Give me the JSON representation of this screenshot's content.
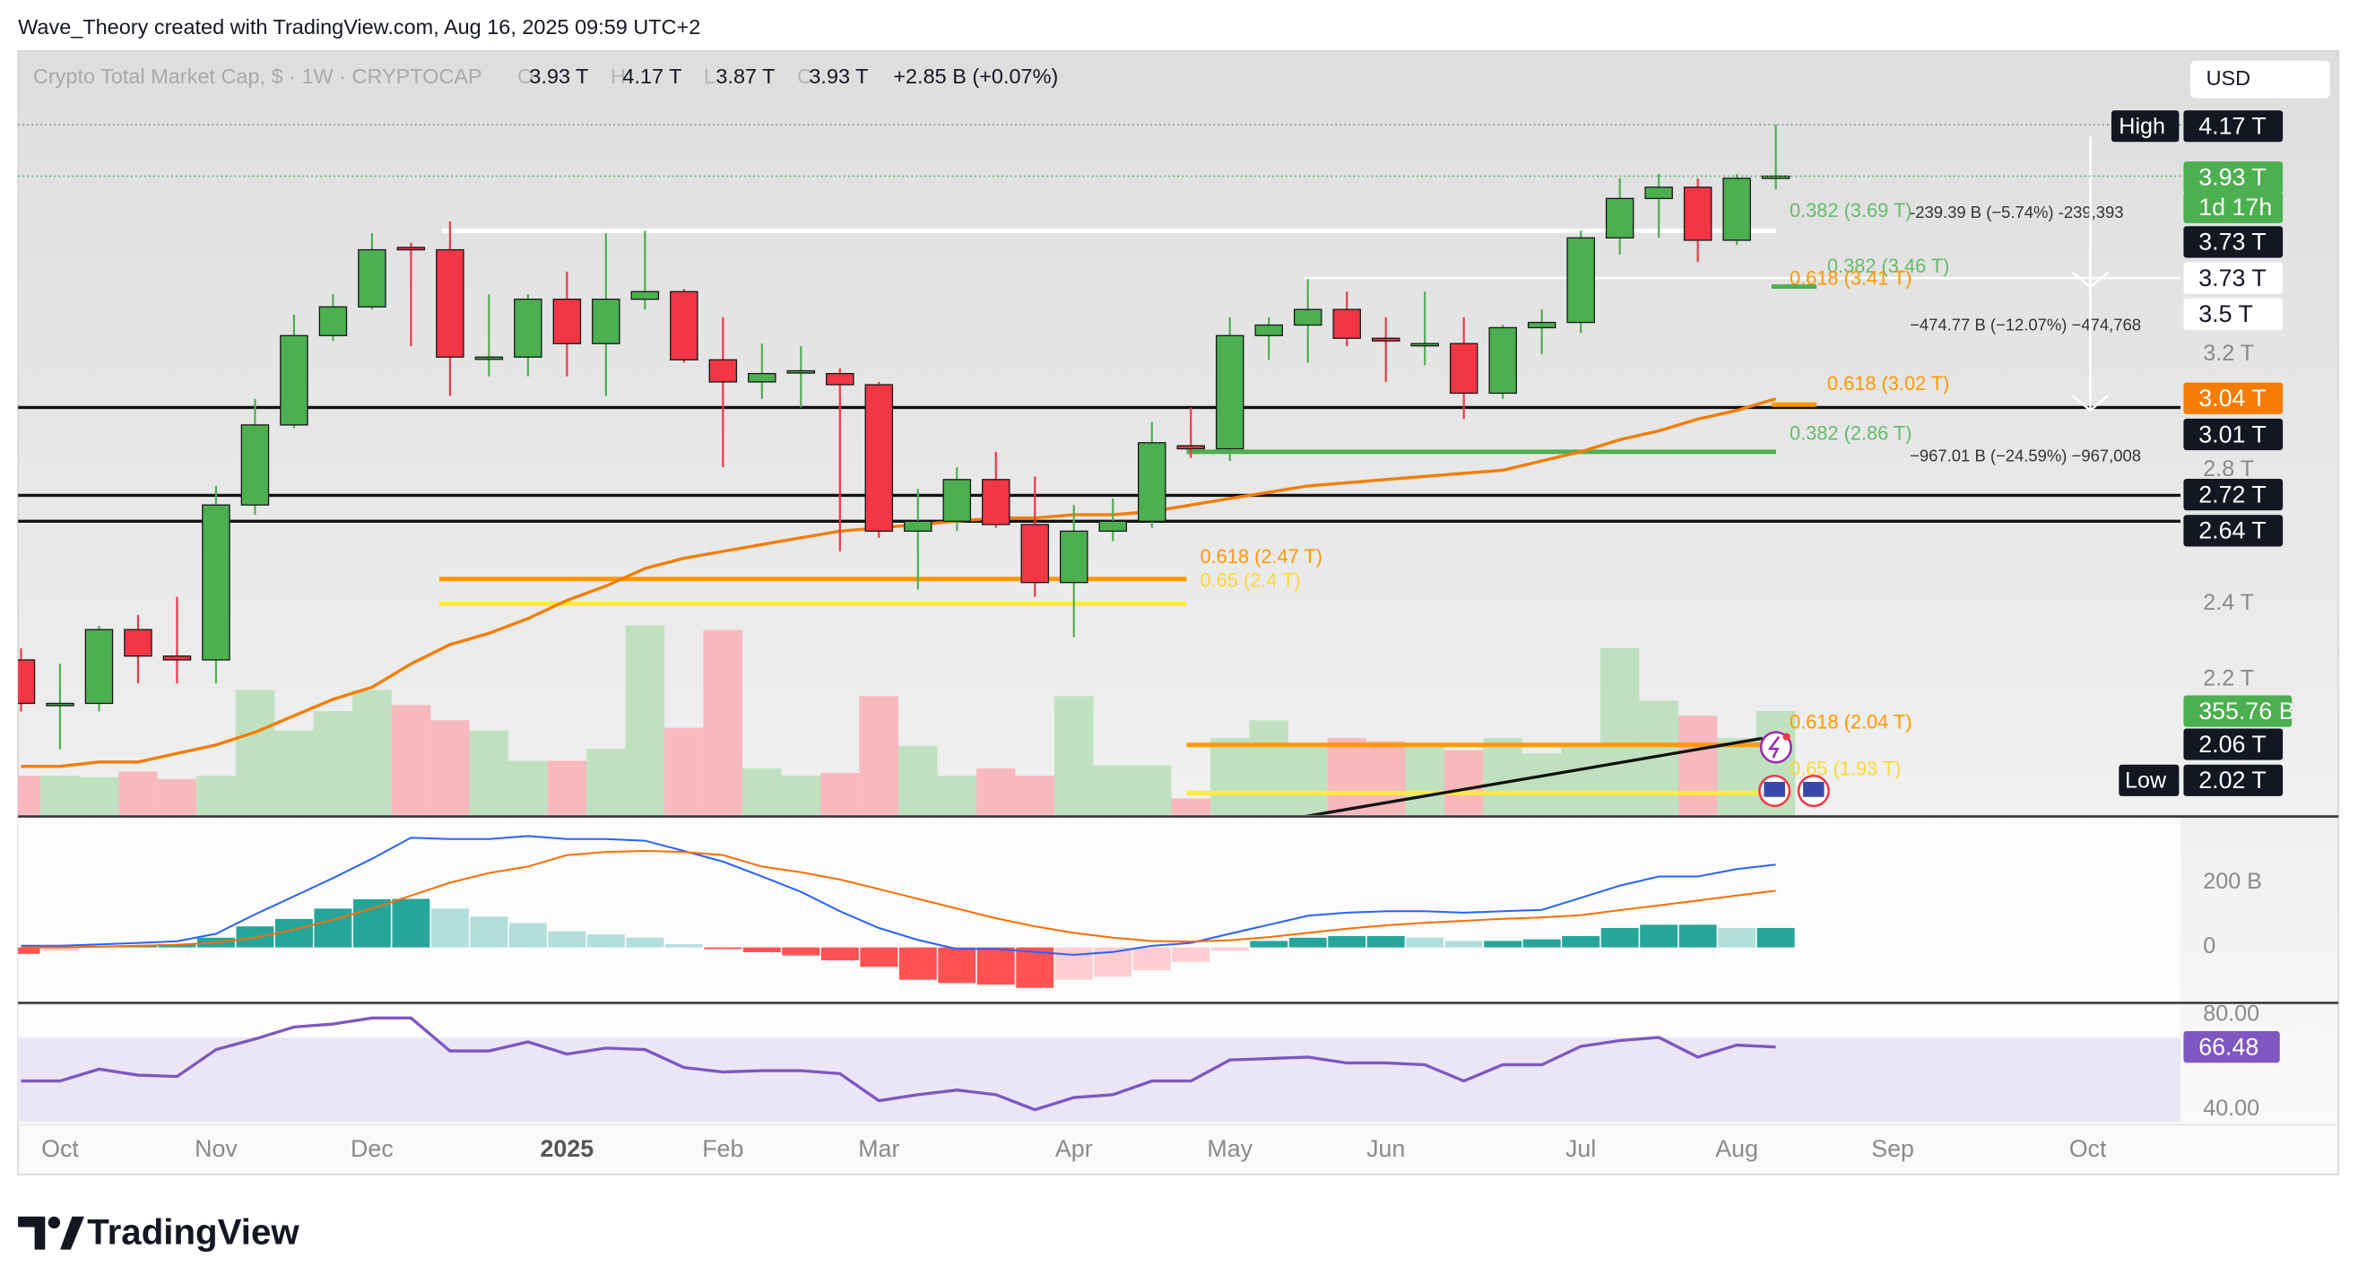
{
  "chart_data": {
    "type": "candlestick",
    "header": "Wave_Theory created with TradingView.com, Aug 16, 2025 09:59 UTC+2",
    "title": "Crypto Total Market Cap, $ · 1W · CRYPTOCAP",
    "ohlc_legend": [
      {
        "key": "O",
        "value": "3.93 T"
      },
      {
        "key": "H",
        "value": "4.17 T"
      },
      {
        "key": "L",
        "value": "3.87 T"
      },
      {
        "key": "C",
        "value": "3.93 T"
      }
    ],
    "change": "+2.85 B (+0.07%)",
    "currency": "USD",
    "brand": "TradingView",
    "log_scale": true,
    "grid": false,
    "colors": {
      "up": "#4caf50",
      "down": "#f23645"
    },
    "categories": [
      null,
      "Oct",
      null,
      null,
      null,
      "Nov",
      null,
      null,
      null,
      "Dec",
      null,
      null,
      null,
      null,
      "2025",
      null,
      null,
      null,
      "Feb",
      null,
      null,
      null,
      "Mar",
      null,
      null,
      null,
      null,
      "Apr",
      null,
      null,
      null,
      "May",
      null,
      null,
      null,
      "Jun",
      null,
      null,
      null,
      null,
      "Jul",
      null,
      null,
      null,
      "Aug",
      null,
      null,
      null,
      "Sep",
      null,
      null,
      null,
      null,
      "Oct"
    ],
    "open": [
      2.25,
      2.14,
      2.14,
      2.33,
      2.26,
      2.25,
      2.69,
      2.95,
      3.27,
      3.38,
      3.62,
      3.61,
      3.19,
      3.19,
      3.41,
      3.24,
      3.41,
      3.44,
      3.18,
      3.1,
      3.14,
      3.13,
      3.09,
      2.61,
      2.64,
      2.77,
      2.63,
      2.46,
      2.61,
      2.64,
      2.88,
      2.87,
      3.27,
      3.31,
      3.37,
      3.26,
      3.24,
      3.24,
      3.06,
      3.3,
      3.32,
      3.66,
      3.83,
      3.88,
      3.65,
      3.93,
      null,
      null,
      null,
      null,
      null,
      null,
      null,
      null
    ],
    "high": [
      2.28,
      2.24,
      2.34,
      2.37,
      2.42,
      2.75,
      3.04,
      3.35,
      3.43,
      3.68,
      3.64,
      3.73,
      3.43,
      3.43,
      3.52,
      3.68,
      3.69,
      3.45,
      3.34,
      3.24,
      3.23,
      3.15,
      3.1,
      2.74,
      2.81,
      2.86,
      2.78,
      2.69,
      2.71,
      2.96,
      3.01,
      3.34,
      3.34,
      3.49,
      3.44,
      3.34,
      3.44,
      3.34,
      3.31,
      3.37,
      3.69,
      3.92,
      3.94,
      3.92,
      3.94,
      4.17,
      null,
      null,
      null,
      null,
      null,
      null,
      null,
      null
    ],
    "low": [
      2.12,
      2.03,
      2.12,
      2.19,
      2.19,
      2.19,
      2.66,
      2.94,
      3.25,
      3.37,
      3.23,
      3.05,
      3.12,
      3.12,
      3.12,
      3.05,
      3.37,
      3.17,
      2.81,
      3.04,
      3.01,
      2.55,
      2.59,
      2.44,
      2.61,
      2.62,
      2.42,
      2.31,
      2.58,
      2.62,
      2.84,
      2.83,
      3.18,
      3.17,
      3.23,
      3.1,
      3.16,
      2.97,
      3.04,
      3.2,
      3.28,
      3.59,
      3.66,
      3.56,
      3.63,
      3.87,
      null,
      null,
      null,
      null,
      null,
      null,
      null,
      null
    ],
    "close": [
      2.14,
      2.14,
      2.33,
      2.26,
      2.25,
      2.69,
      2.95,
      3.27,
      3.38,
      3.61,
      3.61,
      3.19,
      3.19,
      3.41,
      3.24,
      3.41,
      3.44,
      3.18,
      3.1,
      3.13,
      3.14,
      3.09,
      2.61,
      2.64,
      2.77,
      2.63,
      2.46,
      2.61,
      2.64,
      2.89,
      2.87,
      3.27,
      3.31,
      3.37,
      3.26,
      3.25,
      3.24,
      3.06,
      3.3,
      3.32,
      3.66,
      3.83,
      3.88,
      3.65,
      3.92,
      3.93,
      null,
      null,
      null,
      null,
      null,
      null,
      null,
      null
    ],
    "ylim": [
      1.885,
      4.54
    ],
    "yticks": [
      {
        "value": 2.2,
        "label": "2.2 T"
      },
      {
        "value": 2.4,
        "label": "2.4 T"
      },
      {
        "value": 2.8,
        "label": "2.8 T"
      },
      {
        "value": 3.2,
        "label": "3.2 T"
      }
    ],
    "ma": {
      "color": "#f57c00",
      "values": [
        1.99,
        1.99,
        2.0,
        2.0,
        2.02,
        2.04,
        2.07,
        2.11,
        2.15,
        2.18,
        2.24,
        2.29,
        2.32,
        2.36,
        2.41,
        2.45,
        2.5,
        2.53,
        2.55,
        2.57,
        2.59,
        2.61,
        2.62,
        2.63,
        2.64,
        2.65,
        2.65,
        2.66,
        2.66,
        2.67,
        2.69,
        2.71,
        2.73,
        2.75,
        2.76,
        2.77,
        2.78,
        2.79,
        2.8,
        2.83,
        2.86,
        2.9,
        2.93,
        2.97,
        3.0,
        3.04,
        null,
        null,
        null,
        null,
        null,
        null,
        null,
        null
      ]
    },
    "volume": {
      "ylim": [
        0,
        2652
      ],
      "values": [
        131,
        131,
        126,
        146,
        120,
        131,
        429,
        288,
        356,
        429,
        377,
        324,
        288,
        183,
        183,
        225,
        654,
        298,
        638,
        157,
        131,
        141,
        408,
        235,
        131,
        157,
        131,
        408,
        167,
        167,
        52,
        262,
        324,
        246,
        262,
        251,
        235,
        220,
        262,
        209,
        235,
        575,
        392,
        340,
        262,
        355.76,
        null,
        null,
        null,
        null,
        null,
        null,
        null,
        null
      ]
    },
    "hlines": [
      3.01,
      2.72,
      2.64
    ],
    "fib_levels": [
      {
        "label": "0.382 (3.69 T)",
        "value": 3.69
      },
      {
        "label": "0.382 (3.46 T)",
        "value": 3.46
      },
      {
        "label": "0.618 (3.41 T)",
        "value": 3.41
      },
      {
        "label": "0.618 (3.02 T)",
        "value": 3.02
      },
      {
        "label": "0.382 (2.86 T)",
        "value": 2.86
      },
      {
        "label": "0.618 (2.47 T)",
        "value": 2.47
      },
      {
        "label": "0.65 (2.4 T)",
        "value": 2.4
      },
      {
        "label": "0.618 (2.04 T)",
        "value": 2.04
      },
      {
        "label": "0.65 (1.93 T)",
        "value": 1.93
      }
    ],
    "measurements": [
      "-239.39 B (−5.74%) -239,393",
      "−474.77 B (−12.07%) −474,768",
      "−967.01 B (−24.59%) −967,008"
    ],
    "high_tag": "High",
    "low_tag": "Low",
    "price_labels": [
      {
        "text": "4.17 T",
        "style": "black"
      },
      {
        "text": "3.93 T",
        "style": "green"
      },
      {
        "text": "1d 17h",
        "style": "green"
      },
      {
        "text": "3.73 T",
        "style": "black"
      },
      {
        "text": "3.73 T",
        "style": "white"
      },
      {
        "text": "3.5 T",
        "style": "white"
      },
      {
        "text": "3.04 T",
        "style": "orange"
      },
      {
        "text": "3.01 T",
        "style": "black"
      },
      {
        "text": "2.72 T",
        "style": "black"
      },
      {
        "text": "2.64 T",
        "style": "black"
      },
      {
        "text": "355.76 B",
        "style": "green"
      },
      {
        "text": "2.06 T",
        "style": "black"
      },
      {
        "text": "2.02 T",
        "style": "black"
      }
    ],
    "macd": {
      "ylim": [
        -167,
        400
      ],
      "yticks": [
        0,
        {
          "value": 200,
          "label": "200 B"
        }
      ],
      "histogram": [
        -20,
        -10,
        5,
        5,
        10,
        30,
        65,
        88,
        120,
        149,
        150,
        120,
        95,
        75,
        50,
        40,
        30,
        10,
        -5,
        -15,
        -25,
        -40,
        -60,
        -100,
        -110,
        -115,
        -125,
        -100,
        -90,
        -70,
        -45,
        -10,
        20,
        30,
        35,
        35,
        30,
        20,
        20,
        25,
        35,
        60,
        70,
        70,
        60,
        60,
        null,
        null,
        null,
        null,
        null,
        null,
        null,
        null
      ],
      "macd": [
        5,
        5,
        9,
        14,
        19,
        42,
        102,
        158,
        214,
        274,
        339,
        335,
        335,
        344,
        335,
        335,
        330,
        298,
        265,
        219,
        172,
        112,
        60,
        23,
        -5,
        -5,
        -14,
        -23,
        -14,
        5,
        14,
        42,
        70,
        98,
        107,
        112,
        112,
        107,
        112,
        116,
        153,
        191,
        219,
        219,
        242,
        256,
        null,
        null,
        null,
        null,
        null,
        null,
        null,
        null
      ],
      "signal": [
        0,
        0,
        2,
        5,
        8,
        15,
        30,
        55,
        85,
        120,
        160,
        200,
        230,
        250,
        285,
        295,
        298,
        295,
        285,
        250,
        232,
        210,
        180,
        150,
        120,
        90,
        65,
        45,
        30,
        20,
        18,
        22,
        32,
        45,
        58,
        68,
        76,
        82,
        88,
        93,
        100,
        115,
        130,
        145,
        160,
        175,
        null,
        null,
        null,
        null,
        null,
        null,
        null,
        null
      ],
      "colors": {
        "macd": "#2962ff",
        "signal": "#ff6d00"
      }
    },
    "rsi": {
      "color": "#7e57c2",
      "ylim": [
        34.9,
        83.8
      ],
      "yticks": [
        {
          "value": 40,
          "label": "40.00"
        },
        {
          "value": 80,
          "label": "80.00"
        }
      ],
      "values": [
        52.1,
        52.1,
        57.1,
        54.6,
        54.0,
        65.4,
        69.8,
        74.9,
        76.2,
        78.7,
        78.7,
        64.8,
        64.8,
        68.6,
        63.5,
        66.0,
        65.4,
        57.8,
        55.9,
        56.5,
        56.5,
        55.2,
        43.8,
        46.3,
        48.3,
        46.3,
        40.0,
        45.1,
        46.3,
        52.1,
        52.1,
        61.0,
        61.6,
        62.2,
        59.7,
        59.7,
        59.0,
        52.1,
        59.0,
        59.0,
        66.7,
        69.2,
        70.5,
        62.2,
        67.3,
        66.48,
        null,
        null,
        null,
        null,
        null,
        null,
        null,
        null
      ]
    }
  }
}
